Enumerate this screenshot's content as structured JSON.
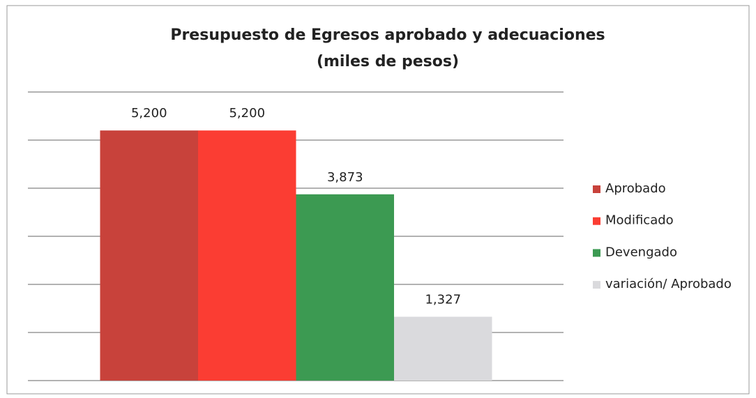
{
  "chart_data": {
    "type": "bar",
    "title": "Presupuesto de Egresos aprobado y adecuaciones",
    "subtitle": "(miles de pesos)",
    "series": [
      {
        "name": "Aprobado",
        "color": "#c8423b",
        "values": [
          5200
        ],
        "value_labels": [
          "5,200"
        ]
      },
      {
        "name": "Modificado",
        "color": "#fb3d33",
        "values": [
          5200
        ],
        "value_labels": [
          "5,200"
        ]
      },
      {
        "name": "Devengado",
        "color": "#3c9a52",
        "values": [
          3873
        ],
        "value_labels": [
          "3,873"
        ]
      },
      {
        "name": "variación/ Aprobado",
        "color": "#dadadd",
        "values": [
          1327
        ],
        "value_labels": [
          "1,327"
        ]
      }
    ],
    "ylim": [
      0,
      6000
    ],
    "yticks": [
      0,
      1000,
      2000,
      3000,
      4000,
      5000,
      6000
    ],
    "grid": true,
    "legend": "right"
  }
}
